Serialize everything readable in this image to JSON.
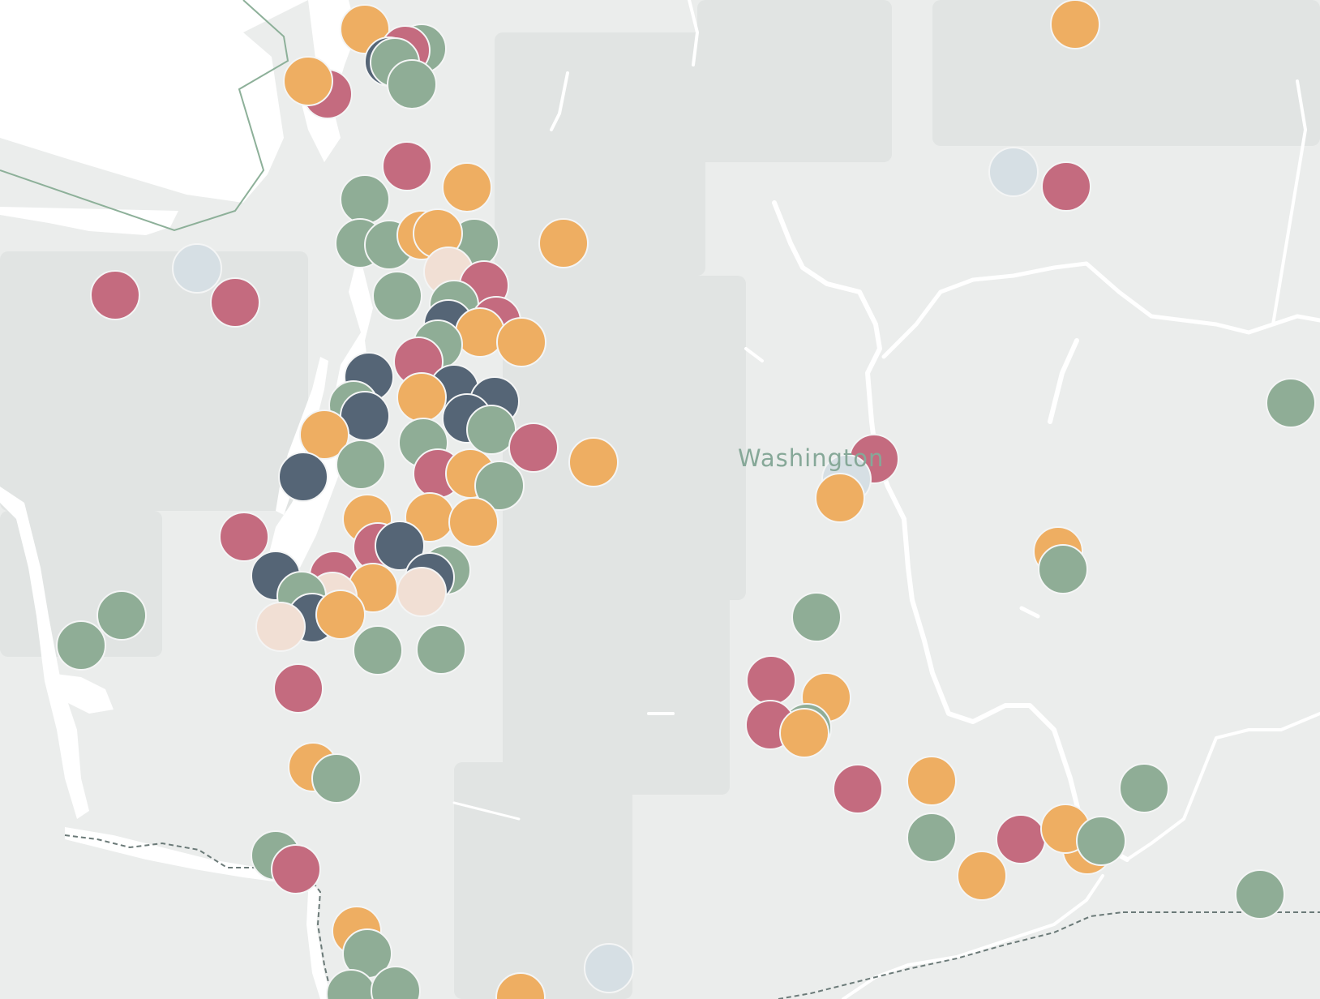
{
  "map": {
    "state_label": "Washington",
    "colors": {
      "background": "#ebedec",
      "land_light": "#eef0ef",
      "land_dark": "#e1e4e3",
      "water": "#ffffff",
      "border_green": "#8db099",
      "border_dash": "#6b7a78",
      "marker_stroke": "#f4f5f5"
    },
    "categories": [
      {
        "key": "red",
        "color": "#c46b7f"
      },
      {
        "key": "green",
        "color": "#8fad96"
      },
      {
        "key": "orange",
        "color": "#eeae62"
      },
      {
        "key": "navy",
        "color": "#556576"
      },
      {
        "key": "peach",
        "color": "#f1dfd4"
      },
      {
        "key": "lightblue",
        "color": "#d6dfe4"
      }
    ],
    "markers": [
      [
        "orange",
        450,
        36
      ],
      [
        "green",
        520,
        60
      ],
      [
        "red",
        500,
        62
      ],
      [
        "navy",
        480,
        76
      ],
      [
        "green",
        487,
        77
      ],
      [
        "green",
        508,
        104
      ],
      [
        "red",
        404,
        116
      ],
      [
        "orange",
        380,
        100
      ],
      [
        "orange",
        1326,
        30
      ],
      [
        "lightblue",
        1250,
        212
      ],
      [
        "red",
        1315,
        230
      ],
      [
        "red",
        502,
        205
      ],
      [
        "orange",
        576,
        231
      ],
      [
        "green",
        450,
        246
      ],
      [
        "green",
        444,
        300
      ],
      [
        "green",
        480,
        302
      ],
      [
        "green",
        585,
        300
      ],
      [
        "orange",
        520,
        290
      ],
      [
        "orange",
        540,
        288
      ],
      [
        "orange",
        695,
        300
      ],
      [
        "lightblue",
        243,
        331
      ],
      [
        "red",
        142,
        364
      ],
      [
        "red",
        290,
        373
      ],
      [
        "peach",
        553,
        335
      ],
      [
        "red",
        597,
        352
      ],
      [
        "green",
        490,
        365
      ],
      [
        "green",
        560,
        376
      ],
      [
        "red",
        612,
        396
      ],
      [
        "navy",
        553,
        400
      ],
      [
        "orange",
        592,
        410
      ],
      [
        "orange",
        643,
        422
      ],
      [
        "green",
        540,
        425
      ],
      [
        "red",
        516,
        446
      ],
      [
        "navy",
        455,
        465
      ],
      [
        "navy",
        560,
        480
      ],
      [
        "navy",
        610,
        495
      ],
      [
        "green",
        436,
        500
      ],
      [
        "navy",
        450,
        513
      ],
      [
        "orange",
        520,
        490
      ],
      [
        "navy",
        576,
        516
      ],
      [
        "green",
        606,
        530
      ],
      [
        "red",
        658,
        552
      ],
      [
        "orange",
        732,
        570
      ],
      [
        "orange",
        400,
        536
      ],
      [
        "green",
        522,
        546
      ],
      [
        "red",
        540,
        584
      ],
      [
        "orange",
        580,
        584
      ],
      [
        "green",
        445,
        573
      ],
      [
        "navy",
        374,
        588
      ],
      [
        "green",
        616,
        599
      ],
      [
        "orange",
        453,
        640
      ],
      [
        "orange",
        530,
        638
      ],
      [
        "orange",
        584,
        644
      ],
      [
        "red",
        301,
        662
      ],
      [
        "red",
        466,
        675
      ],
      [
        "navy",
        493,
        673
      ],
      [
        "navy",
        340,
        710
      ],
      [
        "green",
        550,
        703
      ],
      [
        "navy",
        530,
        712
      ],
      [
        "red",
        412,
        710
      ],
      [
        "orange",
        460,
        725
      ],
      [
        "peach",
        520,
        730
      ],
      [
        "peach",
        410,
        736
      ],
      [
        "green",
        372,
        735
      ],
      [
        "navy",
        385,
        762
      ],
      [
        "orange",
        420,
        758
      ],
      [
        "peach",
        346,
        773
      ],
      [
        "green",
        150,
        759
      ],
      [
        "green",
        100,
        796
      ],
      [
        "green",
        466,
        802
      ],
      [
        "green",
        544,
        801
      ],
      [
        "red",
        368,
        849
      ],
      [
        "red",
        1078,
        566
      ],
      [
        "lightblue",
        1044,
        591
      ],
      [
        "orange",
        1036,
        614
      ],
      [
        "green",
        1592,
        497
      ],
      [
        "orange",
        1305,
        680
      ],
      [
        "green",
        1311,
        702
      ],
      [
        "green",
        1007,
        761
      ],
      [
        "red",
        951,
        839
      ],
      [
        "orange",
        1019,
        860
      ],
      [
        "green",
        995,
        898
      ],
      [
        "red",
        950,
        894
      ],
      [
        "orange",
        992,
        904
      ],
      [
        "orange",
        386,
        946
      ],
      [
        "green",
        415,
        960
      ],
      [
        "red",
        1058,
        973
      ],
      [
        "orange",
        1149,
        963
      ],
      [
        "green",
        1411,
        972
      ],
      [
        "green",
        1149,
        1033
      ],
      [
        "red",
        1259,
        1035
      ],
      [
        "orange",
        1211,
        1080
      ],
      [
        "orange",
        1341,
        1048
      ],
      [
        "orange",
        1314,
        1022
      ],
      [
        "green",
        1358,
        1037
      ],
      [
        "green",
        1554,
        1103
      ],
      [
        "green",
        340,
        1055
      ],
      [
        "red",
        365,
        1072
      ],
      [
        "orange",
        440,
        1148
      ],
      [
        "green",
        453,
        1176
      ],
      [
        "lightblue",
        751,
        1194
      ],
      [
        "orange",
        642,
        1230
      ],
      [
        "green",
        433,
        1226
      ],
      [
        "green",
        488,
        1222
      ]
    ]
  }
}
